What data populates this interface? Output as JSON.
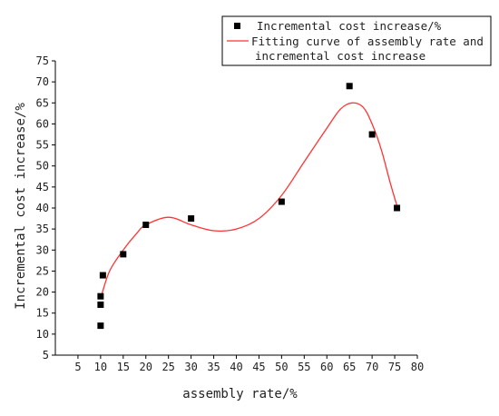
{
  "chart_data": {
    "type": "scatter",
    "title": "",
    "xlabel": "assembly rate/%",
    "ylabel": "Incremental cost increase/%",
    "xlim": [
      0,
      80
    ],
    "ylim": [
      5,
      75
    ],
    "x_ticks": [
      5,
      10,
      15,
      20,
      25,
      30,
      35,
      40,
      45,
      50,
      55,
      60,
      65,
      70,
      75,
      80
    ],
    "y_ticks": [
      5,
      10,
      15,
      20,
      25,
      30,
      35,
      40,
      45,
      50,
      55,
      60,
      65,
      70,
      75
    ],
    "grid": false,
    "legend_position": "top-right",
    "series": [
      {
        "name": "Incremental cost increase/%",
        "kind": "scatter",
        "marker": "square",
        "color": "#000000",
        "points": [
          {
            "x": 10,
            "y": 19
          },
          {
            "x": 10,
            "y": 17
          },
          {
            "x": 10,
            "y": 12
          },
          {
            "x": 10.5,
            "y": 24
          },
          {
            "x": 15,
            "y": 29
          },
          {
            "x": 20,
            "y": 36
          },
          {
            "x": 30,
            "y": 37.5
          },
          {
            "x": 50,
            "y": 41.5
          },
          {
            "x": 65,
            "y": 69
          },
          {
            "x": 70,
            "y": 57.5
          },
          {
            "x": 75.5,
            "y": 40
          }
        ]
      },
      {
        "name": "Fitting curve of assembly rate and incremental cost increase",
        "name_lines": [
          "Fitting curve of assembly rate and",
          "incremental cost increase"
        ],
        "kind": "line",
        "color": "#ff3333",
        "points": [
          {
            "x": 10,
            "y": 18.5
          },
          {
            "x": 12,
            "y": 25
          },
          {
            "x": 15,
            "y": 30
          },
          {
            "x": 18,
            "y": 34
          },
          {
            "x": 20,
            "y": 36
          },
          {
            "x": 25,
            "y": 37.8
          },
          {
            "x": 30,
            "y": 36
          },
          {
            "x": 35,
            "y": 34.6
          },
          {
            "x": 40,
            "y": 35
          },
          {
            "x": 45,
            "y": 37.5
          },
          {
            "x": 50,
            "y": 43
          },
          {
            "x": 55,
            "y": 51
          },
          {
            "x": 60,
            "y": 59
          },
          {
            "x": 63,
            "y": 63.5
          },
          {
            "x": 65.5,
            "y": 65
          },
          {
            "x": 68,
            "y": 64
          },
          {
            "x": 70,
            "y": 60
          },
          {
            "x": 72,
            "y": 54
          },
          {
            "x": 74,
            "y": 46
          },
          {
            "x": 75.5,
            "y": 40.5
          }
        ]
      }
    ]
  }
}
